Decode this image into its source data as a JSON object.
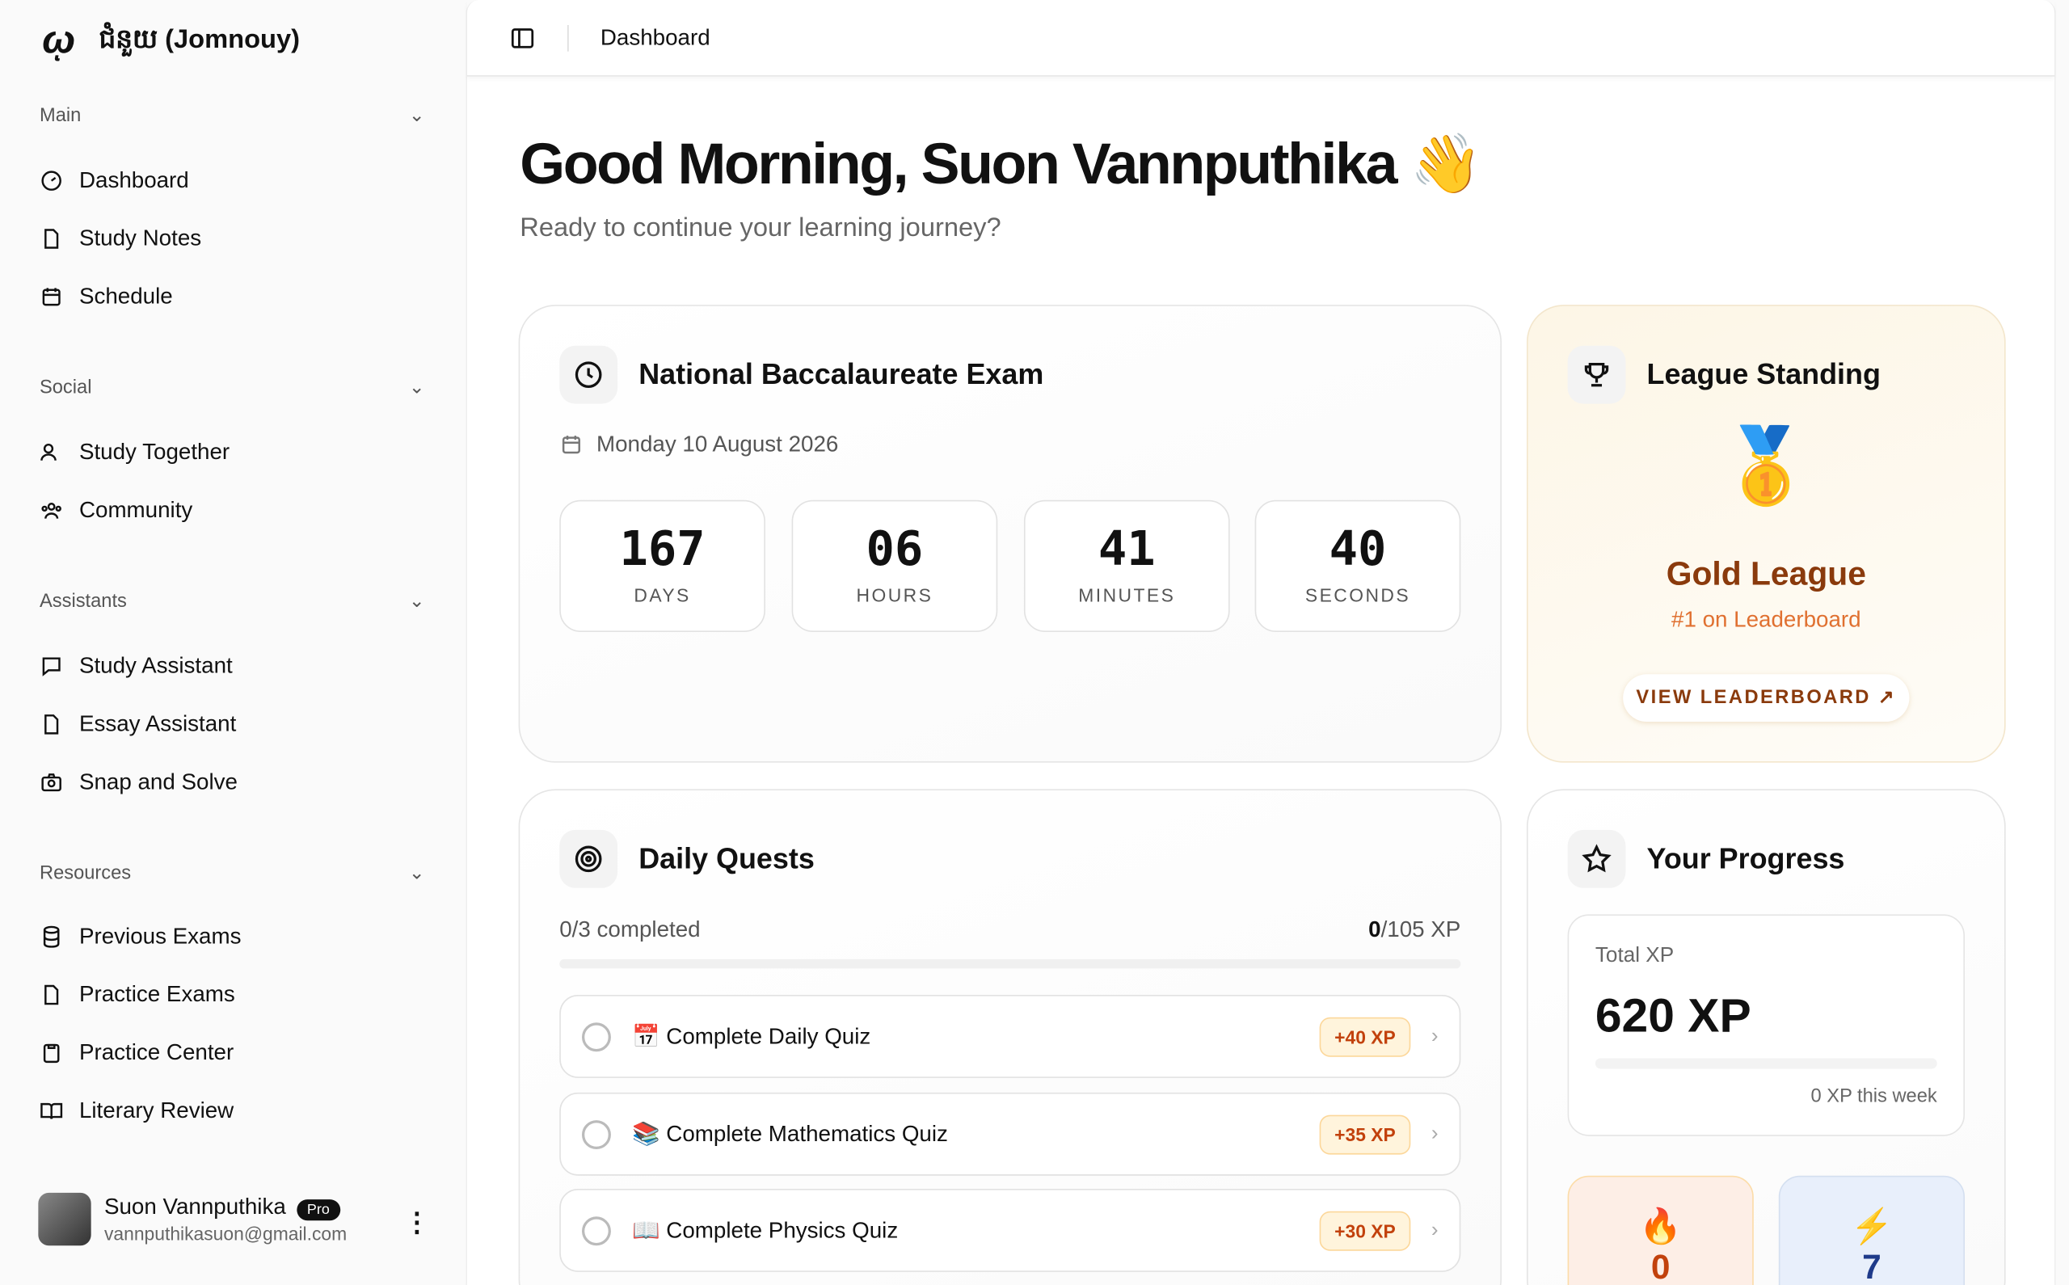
{
  "app": {
    "title": "ជំនួយ (Jomnouy)"
  },
  "sidebar": {
    "sections": [
      {
        "label": "Main",
        "items": [
          "Dashboard",
          "Study Notes",
          "Schedule"
        ]
      },
      {
        "label": "Social",
        "items": [
          "Study Together",
          "Community"
        ]
      },
      {
        "label": "Assistants",
        "items": [
          "Study Assistant",
          "Essay Assistant",
          "Snap and Solve"
        ]
      },
      {
        "label": "Resources",
        "items": [
          "Previous Exams",
          "Practice Exams",
          "Practice Center",
          "Literary Review"
        ]
      }
    ],
    "user": {
      "name": "Suon Vannputhika",
      "badge": "Pro",
      "email": "vannputhikasuon@gmail.com"
    }
  },
  "header": {
    "breadcrumb": "Dashboard"
  },
  "greeting": {
    "title": "Good Morning, Suon Vannputhika 👋",
    "subtitle": "Ready to continue your learning journey?"
  },
  "exam": {
    "title": "National Baccalaureate Exam",
    "date": "Monday 10 August 2026",
    "countdown": [
      {
        "value": "167",
        "label": "DAYS"
      },
      {
        "value": "06",
        "label": "HOURS"
      },
      {
        "value": "41",
        "label": "MINUTES"
      },
      {
        "value": "40",
        "label": "SECONDS"
      }
    ]
  },
  "league": {
    "title": "League Standing",
    "league": "Gold League",
    "rank": "#1 on Leaderboard",
    "button": "VIEW LEADERBOARD ↗",
    "medal": "🥇"
  },
  "quests": {
    "title": "Daily Quests",
    "completed": "0/3 completed",
    "xp_done": "0",
    "xp_total": "/105 XP",
    "progress": 0,
    "items": [
      {
        "label": "📅 Complete Daily Quiz",
        "xp": "+40 XP"
      },
      {
        "label": "📚 Complete Mathematics Quiz",
        "xp": "+35 XP"
      },
      {
        "label": "📖 Complete Physics Quiz",
        "xp": "+30 XP"
      }
    ]
  },
  "progress": {
    "title": "Your Progress",
    "total_label": "Total XP",
    "total": "620 XP",
    "week": "0 XP this week",
    "week_progress": 0,
    "stats": [
      {
        "icon": "🔥",
        "value": "0",
        "color": "#c2410c"
      },
      {
        "icon": "⚡",
        "value": "7",
        "color": "#1e3a8a"
      }
    ]
  },
  "colors": {
    "league_text": "#8a3a0c",
    "league_sub": "#e07030",
    "xp_badge": "#c2410c"
  }
}
